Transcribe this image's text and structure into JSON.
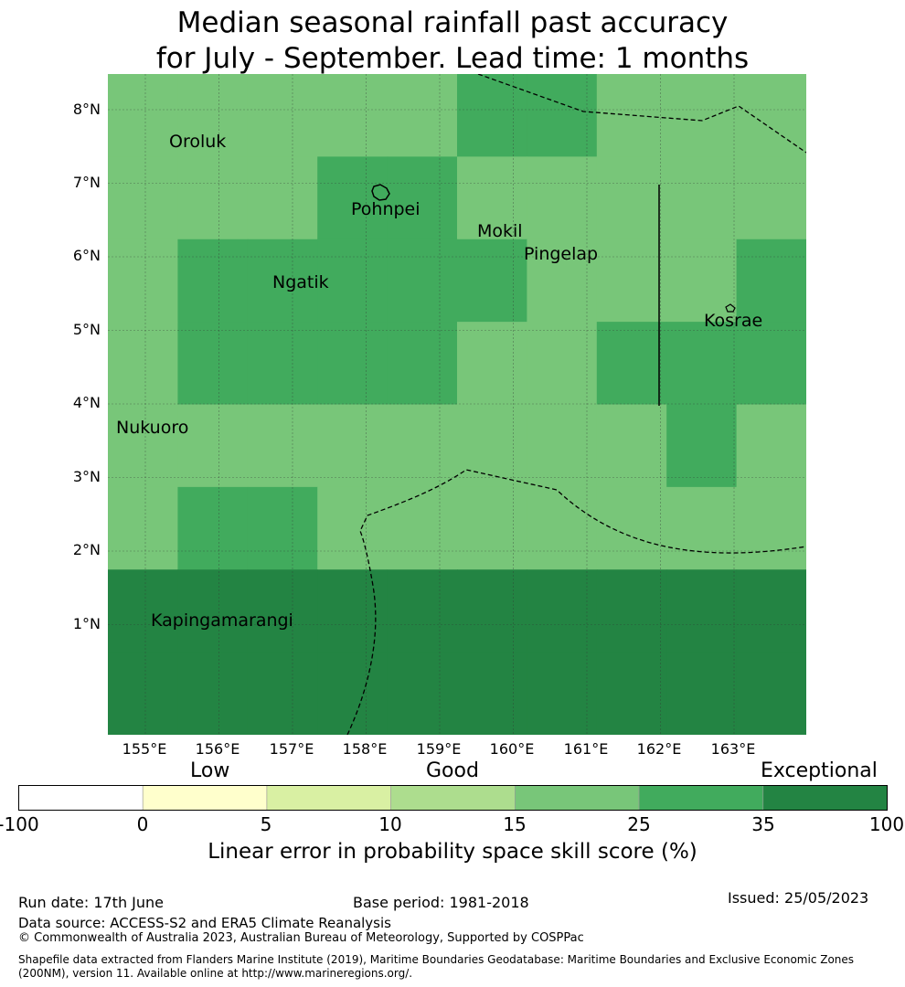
{
  "title": {
    "line1": "Median seasonal rainfall past accuracy",
    "line2": "for July - September. Lead time: 1 months"
  },
  "map": {
    "lat_labels": [
      "8°N",
      "7°N",
      "6°N",
      "5°N",
      "4°N",
      "3°N",
      "2°N",
      "1°N"
    ],
    "lon_labels": [
      "155°E",
      "156°E",
      "157°E",
      "158°E",
      "159°E",
      "160°E",
      "161°E",
      "162°E",
      "163°E"
    ],
    "places": [
      "Oroluk",
      "Pohnpei",
      "Mokil",
      "Pingelap",
      "Ngatik",
      "Kosrae",
      "Nukuoro",
      "Kapingamarangi"
    ],
    "grid_cell_category_rows_north_to_south": [
      "4444455444",
      "4445544444",
      "4555554445",
      "4555544555",
      "4444444454",
      "4554444444",
      "6666666666",
      "6666666666"
    ]
  },
  "legend": {
    "categories": [
      "Low",
      "Good",
      "Exceptional"
    ],
    "ticks": [
      "-100",
      "0",
      "5",
      "10",
      "15",
      "25",
      "35",
      "100"
    ],
    "colors": [
      "#ffffff",
      "#ffffcc",
      "#d9f0a3",
      "#addd8e",
      "#78c679",
      "#41ab5d",
      "#238443"
    ],
    "title": "Linear error in probability space skill score (%)"
  },
  "footer": {
    "run_date": "Run date: 17th June",
    "base_period": "Base period: 1981-2018",
    "issued": "Issued: 25/05/2023",
    "data_source": "Data source: ACCESS-S2 and ERA5 Climate Reanalysis",
    "copyright": "© Commonwealth of Australia 2023, Australian Bureau of Meteorology, Supported by COSPPac",
    "shapefile_line1": "Shapefile data extracted from Flanders Marine Institute (2019), Maritime Boundaries Geodatabase: Maritime Boundaries and Exclusive Economic Zones",
    "shapefile_line2": "(200NM), version 11. Available online at http://www.marineregions.org/."
  }
}
